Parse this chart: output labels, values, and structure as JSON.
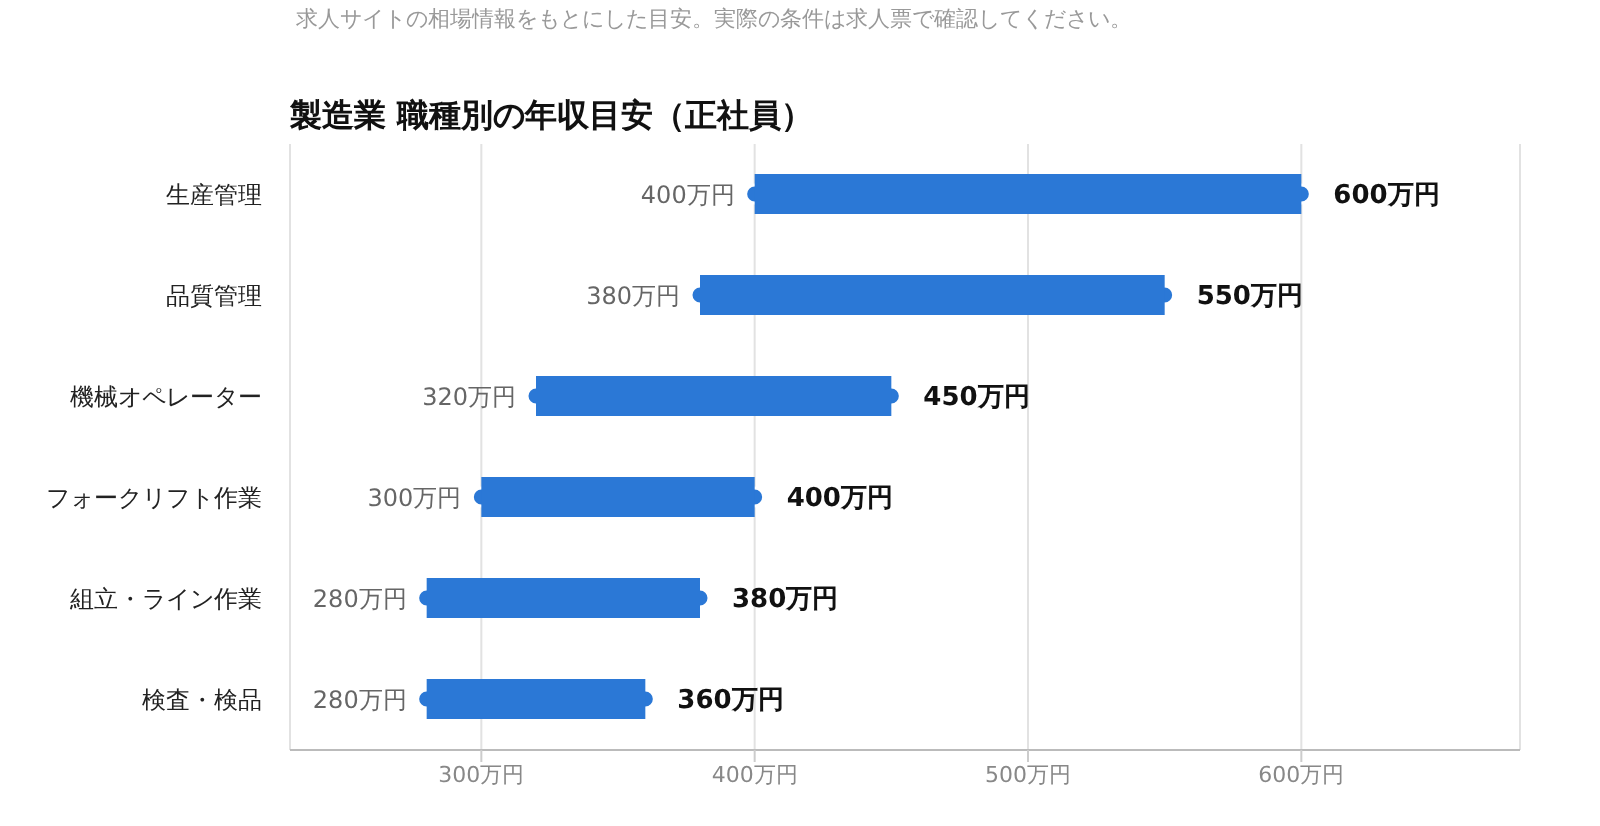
{
  "chart_data": {
    "type": "bar",
    "orientation": "horizontal",
    "title": "製造業 職種別の年収目安（正社員）",
    "categories": [
      "生産管理",
      "品質管理",
      "機械オペレーター",
      "フォークリフト作業",
      "組立・ライン作業",
      "検査・検品"
    ],
    "base": [
      400,
      380,
      320,
      300,
      280,
      280
    ],
    "values": [
      200,
      170,
      130,
      100,
      100,
      80
    ],
    "value_labels": [
      "600万円",
      "550万円",
      "450万円",
      "400万円",
      "380万円",
      "360万円"
    ],
    "color": "#2b78d6",
    "marker": "circle",
    "xlim": [
      230,
      680
    ],
    "xticks": [
      {
        "value": 300,
        "label": "300万円"
      },
      {
        "value": 400,
        "label": "400万円"
      },
      {
        "value": 500,
        "label": "500万円"
      },
      {
        "value": 600,
        "label": "600万円"
      }
    ],
    "grid": "x",
    "annotations": [
      "求人サイトの相場情報をもとにした目安。実際の条件は求人票で確認してください。",
      {
        "text": "400万円",
        "x": 400,
        "y": "生産管理"
      },
      {
        "text": "380万円",
        "x": 380,
        "y": "品質管理"
      },
      {
        "text": "320万円",
        "x": 320,
        "y": "機械オペレーター"
      },
      {
        "text": "300万円",
        "x": 300,
        "y": "フォークリフト作業"
      },
      {
        "text": "280万円",
        "x": 280,
        "y": "組立・ライン作業"
      },
      {
        "text": "280万円",
        "x": 280,
        "y": "検査・検品"
      }
    ]
  }
}
